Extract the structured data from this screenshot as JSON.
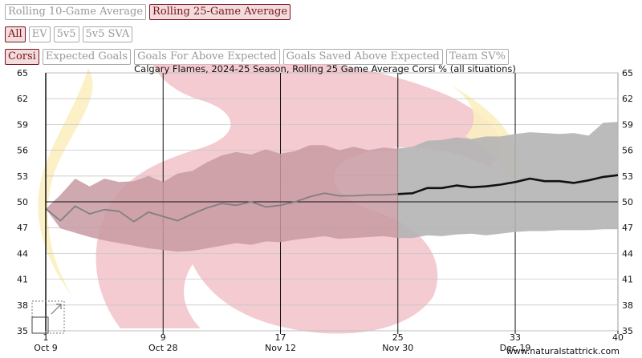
{
  "toolbar": {
    "average_buttons": [
      {
        "label": "Rolling 10-Game Average",
        "active": false
      },
      {
        "label": "Rolling 25-Game Average",
        "active": true
      }
    ],
    "situation_buttons": [
      {
        "label": "All",
        "active": true
      },
      {
        "label": "EV",
        "active": false
      },
      {
        "label": "5v5",
        "active": false
      },
      {
        "label": "5v5 SVA",
        "active": false
      }
    ],
    "metric_buttons": [
      {
        "label": "Corsi",
        "active": true
      },
      {
        "label": "Expected Goals",
        "active": false
      },
      {
        "label": "Goals For Above Expected",
        "active": false
      },
      {
        "label": "Goals Saved Above Expected",
        "active": false
      },
      {
        "label": "Team SV%",
        "active": false
      }
    ]
  },
  "colors": {
    "primary_line": "#111111",
    "secondary_line": "#808080",
    "range_band": "#b4b4b4",
    "early_range_band": "#c89aa2",
    "logo_red": "#efb9c2",
    "logo_gold": "#fbeec0",
    "active_button": "#7a1420"
  },
  "chart_data": {
    "type": "line",
    "title": "Calgary Flames, 2024-25 Season, Rolling 25 Game Average Corsi % (all situations)",
    "xlim": [
      1,
      40
    ],
    "ylim": [
      35,
      65
    ],
    "y_ticks": [
      35,
      38,
      41,
      44,
      47,
      50,
      53,
      56,
      59,
      62,
      65
    ],
    "x_ticks": [
      {
        "game": 1,
        "label": "1",
        "date": "Oct 9"
      },
      {
        "game": 9,
        "label": "9",
        "date": "Oct 28"
      },
      {
        "game": 17,
        "label": "17",
        "date": "Nov 12"
      },
      {
        "game": 25,
        "label": "25",
        "date": "Nov 30"
      },
      {
        "game": 33,
        "label": "33",
        "date": "Dec 19"
      },
      {
        "game": 40,
        "label": "40",
        "date": ""
      }
    ],
    "reference_line": 50,
    "grid": true,
    "series": [
      {
        "style": "thin-gray",
        "x": [
          1,
          2,
          3,
          4,
          5,
          6,
          7,
          8,
          9,
          10,
          11,
          12,
          13,
          14,
          15,
          16,
          17,
          18,
          19,
          20,
          21,
          22,
          23,
          24,
          25
        ],
        "y": [
          49.2,
          47.8,
          49.5,
          48.6,
          49.1,
          48.9,
          47.7,
          48.8,
          48.3,
          47.8,
          48.6,
          49.3,
          49.8,
          49.6,
          50.0,
          49.4,
          49.6,
          50.0,
          50.6,
          51.0,
          50.7,
          50.7,
          50.8,
          50.8,
          50.9
        ]
      },
      {
        "style": "bold-black",
        "x": [
          25,
          26,
          27,
          28,
          29,
          30,
          31,
          32,
          33,
          34,
          35,
          36,
          37,
          38,
          39,
          40
        ],
        "y": [
          50.9,
          51.0,
          51.6,
          51.6,
          51.9,
          51.7,
          51.8,
          52.0,
          52.3,
          52.7,
          52.4,
          52.4,
          52.2,
          52.5,
          52.9,
          53.1
        ]
      }
    ],
    "band_early": {
      "x": [
        1,
        2,
        3,
        4,
        5,
        6,
        7,
        8,
        9,
        10,
        11,
        12,
        13,
        14,
        15,
        16,
        17,
        18,
        19,
        20,
        21,
        22,
        23,
        24,
        25
      ],
      "upper": [
        49.2,
        50.8,
        52.7,
        51.8,
        52.7,
        52.3,
        52.4,
        53.0,
        52.3,
        53.3,
        53.6,
        54.6,
        55.4,
        55.8,
        55.5,
        56.1,
        55.6,
        55.9,
        56.6,
        56.6,
        56.0,
        56.4,
        56.0,
        56.3,
        56.2
      ],
      "lower": [
        49.2,
        46.9,
        46.4,
        45.9,
        45.5,
        45.2,
        44.9,
        44.6,
        44.4,
        44.2,
        44.3,
        44.6,
        44.9,
        45.2,
        45.0,
        45.4,
        45.3,
        45.6,
        45.8,
        46.0,
        45.7,
        45.8,
        45.9,
        46.0,
        45.8
      ]
    },
    "band_late": {
      "x": [
        25,
        26,
        27,
        28,
        29,
        30,
        31,
        32,
        33,
        34,
        35,
        36,
        37,
        38,
        39,
        40
      ],
      "upper": [
        56.2,
        56.4,
        57.1,
        57.2,
        57.5,
        57.3,
        57.6,
        57.6,
        57.9,
        58.1,
        58.0,
        57.9,
        58.0,
        57.7,
        59.2,
        59.3
      ],
      "lower": [
        45.8,
        45.8,
        46.1,
        46.0,
        46.2,
        46.3,
        46.1,
        46.3,
        46.5,
        46.6,
        46.6,
        46.7,
        46.7,
        46.7,
        46.8,
        46.8
      ]
    },
    "footer": "www.naturalstattrick.com"
  }
}
